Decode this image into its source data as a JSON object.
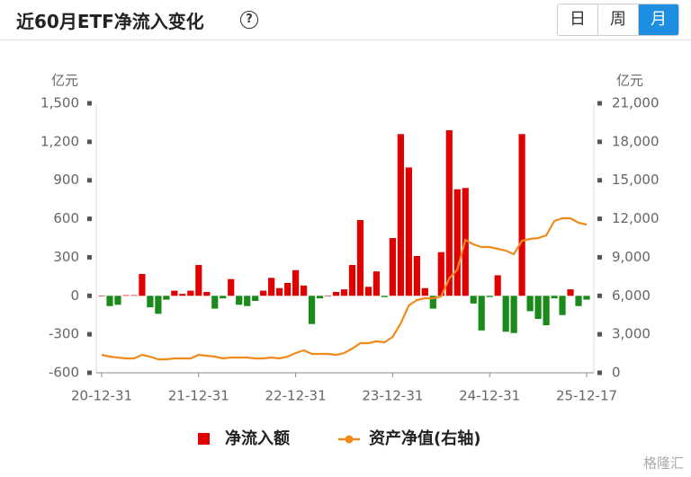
{
  "header": {
    "title": "近60月ETF净流入变化",
    "help": "?",
    "tabs": [
      "日",
      "周",
      "月"
    ],
    "active_tab": 2
  },
  "watermark": "格隆汇",
  "chart_data": {
    "type": "bar-line",
    "y_unit": "亿元",
    "y2_unit": "亿元",
    "categories": [
      "20-12-31",
      null,
      null,
      null,
      null,
      null,
      null,
      null,
      null,
      null,
      null,
      null,
      "21-12-31",
      null,
      null,
      null,
      null,
      null,
      null,
      null,
      null,
      null,
      null,
      null,
      "22-12-31",
      null,
      null,
      null,
      null,
      null,
      null,
      null,
      null,
      null,
      null,
      null,
      "23-12-31",
      null,
      null,
      null,
      null,
      null,
      null,
      null,
      null,
      null,
      null,
      null,
      "24-12-31",
      null,
      null,
      null,
      null,
      null,
      null,
      null,
      null,
      null,
      null,
      null,
      "25-12-17"
    ],
    "series": [
      {
        "name": "净流入额",
        "type": "bar",
        "color": "#e00000",
        "negative_color": "#1a8a1a",
        "values": [
          0,
          -80,
          -70,
          5,
          5,
          170,
          -90,
          -140,
          -30,
          40,
          15,
          40,
          240,
          30,
          -100,
          -20,
          130,
          -70,
          -80,
          -40,
          40,
          140,
          60,
          100,
          200,
          80,
          -220,
          -20,
          0,
          30,
          50,
          240,
          590,
          70,
          190,
          -10,
          450,
          1260,
          1000,
          310,
          60,
          -100,
          340,
          1290,
          830,
          840,
          -60,
          -270,
          -10,
          160,
          -280,
          -290,
          1260,
          -120,
          -180,
          -230,
          -20,
          -150,
          50,
          -80,
          -30
        ]
      },
      {
        "name": "资产净值(右轴)",
        "type": "line",
        "axis": "y2",
        "color": "#f08a1c",
        "values": [
          1400,
          1260,
          1190,
          1120,
          1120,
          1400,
          1260,
          1050,
          1050,
          1120,
          1120,
          1120,
          1400,
          1330,
          1260,
          1120,
          1190,
          1190,
          1190,
          1120,
          1120,
          1190,
          1120,
          1260,
          1540,
          1750,
          1470,
          1470,
          1470,
          1400,
          1540,
          1890,
          2310,
          2310,
          2450,
          2380,
          2800,
          3850,
          5250,
          5670,
          5810,
          5810,
          5950,
          7350,
          8050,
          10360,
          10010,
          9800,
          9800,
          9660,
          9520,
          9240,
          10290,
          10430,
          10500,
          10710,
          11830,
          12040,
          12040,
          11690,
          11550
        ]
      }
    ],
    "ylim": [
      -600,
      1500
    ],
    "yticks": [
      {
        "value": -600,
        "label": "-600"
      },
      {
        "value": -300,
        "label": "-300"
      },
      0,
      300,
      600,
      900,
      {
        "value": 1200,
        "label": "1,200"
      },
      {
        "value": 1500,
        "label": "1,500"
      }
    ],
    "y2lim": [
      0,
      21000
    ],
    "y2ticks": [
      0,
      {
        "value": 3000,
        "label": "3,000"
      },
      {
        "value": 6000,
        "label": "6,000"
      },
      {
        "value": 9000,
        "label": "9,000"
      },
      {
        "value": 12000,
        "label": "12,000"
      },
      {
        "value": 15000,
        "label": "15,000"
      },
      {
        "value": 18000,
        "label": "18,000"
      },
      {
        "value": 21000,
        "label": "21,000"
      }
    ],
    "grid": false
  }
}
